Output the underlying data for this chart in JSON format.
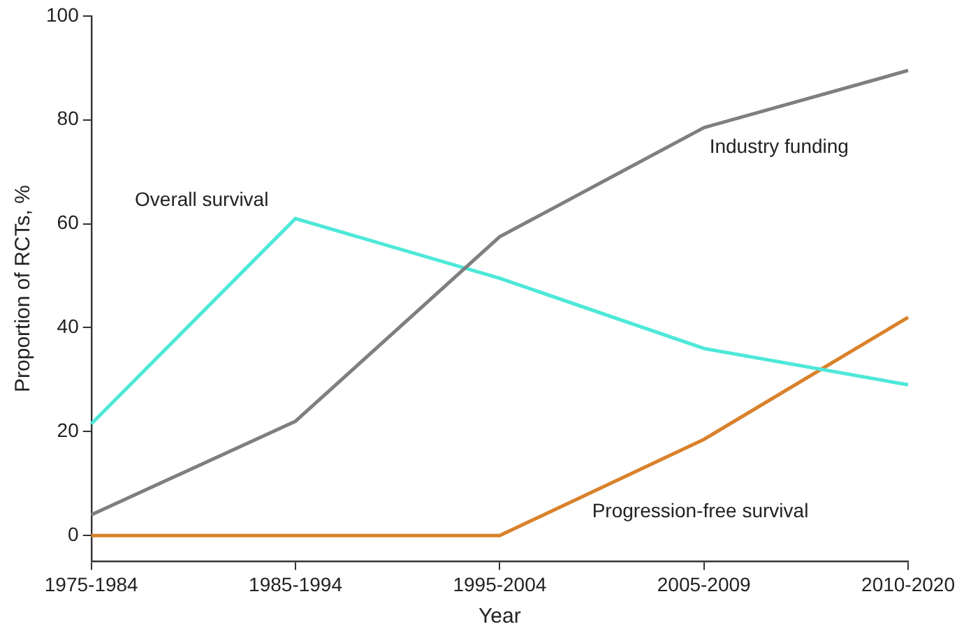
{
  "chart_data": {
    "type": "line",
    "xlabel": "Year",
    "ylabel": "Proportion of RCTs, %",
    "categories": [
      "1975-1984",
      "1985-1994",
      "1995-2004",
      "2005-2009",
      "2010-2020"
    ],
    "series": [
      {
        "name": "Industry funding",
        "color": "#7f7f7f",
        "values": [
          4,
          22,
          57.5,
          78.5,
          89.5
        ]
      },
      {
        "name": "Overall survival",
        "color": "#4de8d8",
        "values": [
          21.5,
          61,
          49.5,
          36,
          29
        ]
      },
      {
        "name": "Progression-free survival",
        "color": "#d9822b",
        "values": [
          0,
          0,
          0,
          18.5,
          42
        ]
      }
    ],
    "ylim": [
      -5,
      100
    ],
    "yticks": [
      0,
      20,
      40,
      60,
      80,
      100
    ],
    "grid": false,
    "legend": false,
    "marker": "none",
    "line_style": "solid"
  }
}
